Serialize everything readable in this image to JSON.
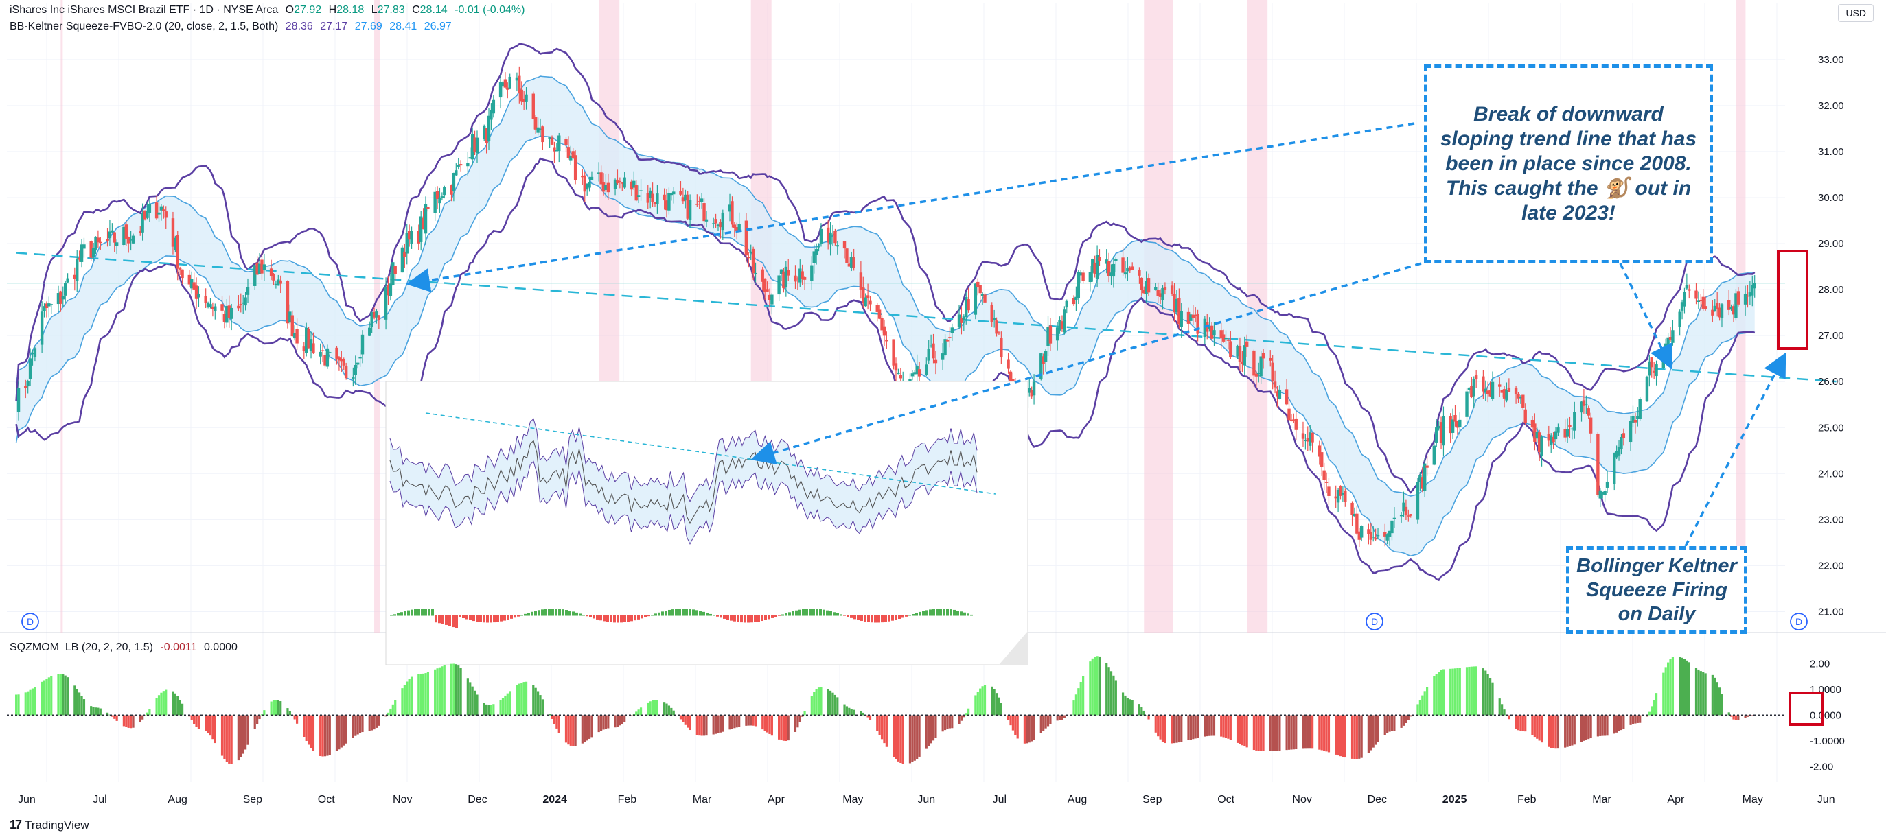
{
  "header": {
    "symbol_line": "iShares Inc iShares MSCI Brazil ETF · 1D · NYSE Arca",
    "ohlc": {
      "open_label": "O",
      "open": "27.92",
      "high_label": "H",
      "high": "28.18",
      "low_label": "L",
      "low": "27.83",
      "close_label": "C",
      "close": "28.14",
      "change": "-0.01 (-0.04%)"
    },
    "indicator_line": "BB-Keltner Squeeze-FVBO-2.0 (20, close, 2, 1.5, Both)",
    "indicator_values": [
      "28.36",
      "27.17",
      "27.69",
      "28.41",
      "26.97"
    ],
    "momentum_line": "SQZMOM_LB (20, 2, 20, 1.5)",
    "momentum_values": [
      "-0.0011",
      "0.0000"
    ]
  },
  "currency_badge": "USD",
  "callouts": {
    "trend": "Break of downward sloping trend line that has been in place since 2008. This caught the 🐒 out in late 2023!",
    "squeeze": "Bollinger Keltner Squeeze Firing on Daily"
  },
  "footer": {
    "brand": "TradingView"
  },
  "colors": {
    "bullish": "#26a69a",
    "bearish": "#ef5350",
    "bb_band": "#5b3fa3",
    "kc_band": "#4aa3df",
    "kc_fill": "#dbeefa",
    "trend_line": "#29b6d6",
    "squeeze_highlight": "#f8c8d8",
    "mom_up_strong": "#4caf50",
    "mom_up_weak": "#6ef06e",
    "mom_down_strong": "#ef5350",
    "mom_down_weak": "#b5514f",
    "arrow": "#1e90e8",
    "highlight_box": "#d0021b"
  },
  "chart_data": [
    {
      "type": "candlestick",
      "title": "iShares Inc iShares MSCI Brazil ETF · 1D · NYSE Arca",
      "x_labels": [
        "Jun",
        "Jul",
        "Aug",
        "Sep",
        "Oct",
        "Nov",
        "Dec",
        "2024",
        "Feb",
        "Mar",
        "Apr",
        "May",
        "Jun",
        "Jul",
        "Aug",
        "Sep",
        "Oct",
        "Nov",
        "Dec",
        "2025",
        "Feb",
        "Mar",
        "Apr",
        "May",
        "Jun"
      ],
      "y_ticks": [
        "21.00",
        "22.00",
        "23.00",
        "24.00",
        "25.00",
        "26.00",
        "27.00",
        "28.00",
        "29.00",
        "30.00",
        "31.00",
        "32.00",
        "33.00"
      ],
      "ylim": [
        20.5,
        33.4
      ],
      "last_price": 28.14,
      "close_path": [
        {
          "x": "2023-06-01",
          "y": 25.6
        },
        {
          "x": "2023-06-15",
          "y": 27.6
        },
        {
          "x": "2023-07-03",
          "y": 28.9
        },
        {
          "x": "2023-07-20",
          "y": 29.2
        },
        {
          "x": "2023-08-01",
          "y": 29.8
        },
        {
          "x": "2023-08-15",
          "y": 28.0
        },
        {
          "x": "2023-09-01",
          "y": 27.4
        },
        {
          "x": "2023-09-15",
          "y": 28.5
        },
        {
          "x": "2023-10-02",
          "y": 26.9
        },
        {
          "x": "2023-10-20",
          "y": 26.2
        },
        {
          "x": "2023-11-01",
          "y": 27.4
        },
        {
          "x": "2023-11-15",
          "y": 29.0
        },
        {
          "x": "2023-12-01",
          "y": 30.2
        },
        {
          "x": "2023-12-15",
          "y": 31.2
        },
        {
          "x": "2023-12-29",
          "y": 32.5
        },
        {
          "x": "2024-01-15",
          "y": 31.2
        },
        {
          "x": "2024-02-01",
          "y": 30.3
        },
        {
          "x": "2024-02-15",
          "y": 30.3
        },
        {
          "x": "2024-03-01",
          "y": 30.0
        },
        {
          "x": "2024-03-15",
          "y": 29.8
        },
        {
          "x": "2024-04-01",
          "y": 29.6
        },
        {
          "x": "2024-04-16",
          "y": 28.0
        },
        {
          "x": "2024-05-01",
          "y": 28.4
        },
        {
          "x": "2024-05-15",
          "y": 29.3
        },
        {
          "x": "2024-06-01",
          "y": 27.5
        },
        {
          "x": "2024-06-15",
          "y": 25.9
        },
        {
          "x": "2024-07-01",
          "y": 26.7
        },
        {
          "x": "2024-07-15",
          "y": 27.9
        },
        {
          "x": "2024-08-05",
          "y": 25.6
        },
        {
          "x": "2024-08-20",
          "y": 27.4
        },
        {
          "x": "2024-09-03",
          "y": 28.6
        },
        {
          "x": "2024-09-20",
          "y": 28.3
        },
        {
          "x": "2024-10-01",
          "y": 28.0
        },
        {
          "x": "2024-10-15",
          "y": 27.3
        },
        {
          "x": "2024-11-01",
          "y": 26.7
        },
        {
          "x": "2024-11-15",
          "y": 26.3
        },
        {
          "x": "2024-12-02",
          "y": 25.0
        },
        {
          "x": "2024-12-16",
          "y": 23.4
        },
        {
          "x": "2024-12-31",
          "y": 22.6
        },
        {
          "x": "2025-01-15",
          "y": 23.3
        },
        {
          "x": "2025-02-01",
          "y": 25.0
        },
        {
          "x": "2025-02-15",
          "y": 25.9
        },
        {
          "x": "2025-03-01",
          "y": 25.6
        },
        {
          "x": "2025-03-15",
          "y": 24.6
        },
        {
          "x": "2025-04-01",
          "y": 25.4
        },
        {
          "x": "2025-04-08",
          "y": 23.6
        },
        {
          "x": "2025-04-20",
          "y": 25.0
        },
        {
          "x": "2025-05-01",
          "y": 26.3
        },
        {
          "x": "2025-05-15",
          "y": 27.9
        },
        {
          "x": "2025-06-01",
          "y": 27.6
        },
        {
          "x": "2025-06-13",
          "y": 28.14
        }
      ],
      "series": [
        {
          "name": "BB-Keltner Squeeze-FVBO-2.0",
          "kind": "bands"
        },
        {
          "name": "Downward trend line",
          "kind": "line",
          "points": [
            {
              "x": "2023-06-01",
              "y": 28.8
            },
            {
              "x": "2025-06-20",
              "y": 26.0
            }
          ]
        }
      ],
      "grid": true
    },
    {
      "type": "bar",
      "title": "SQZMOM_LB (20, 2, 20, 1.5)",
      "y_ticks": [
        "-2.00",
        "-1.0000",
        "0.0000",
        "1.0000",
        "2.00"
      ],
      "ylim": [
        -2.6,
        2.6
      ],
      "momentum_path": [
        {
          "x": "2023-06-01",
          "y": 0.8
        },
        {
          "x": "2023-06-20",
          "y": 1.6
        },
        {
          "x": "2023-07-05",
          "y": 0.3
        },
        {
          "x": "2023-07-20",
          "y": -0.5
        },
        {
          "x": "2023-08-05",
          "y": 1.0
        },
        {
          "x": "2023-08-20",
          "y": -0.6
        },
        {
          "x": "2023-09-01",
          "y": -1.9
        },
        {
          "x": "2023-09-20",
          "y": 0.6
        },
        {
          "x": "2023-10-10",
          "y": -1.6
        },
        {
          "x": "2023-10-30",
          "y": -0.6
        },
        {
          "x": "2023-11-20",
          "y": 1.6
        },
        {
          "x": "2023-12-05",
          "y": 2.0
        },
        {
          "x": "2023-12-20",
          "y": 0.4
        },
        {
          "x": "2024-01-05",
          "y": 1.3
        },
        {
          "x": "2024-01-25",
          "y": -1.2
        },
        {
          "x": "2024-02-10",
          "y": -0.5
        },
        {
          "x": "2024-03-01",
          "y": 0.6
        },
        {
          "x": "2024-03-20",
          "y": -0.8
        },
        {
          "x": "2024-04-10",
          "y": -0.4
        },
        {
          "x": "2024-04-25",
          "y": -1.0
        },
        {
          "x": "2024-05-10",
          "y": 1.1
        },
        {
          "x": "2024-05-25",
          "y": 0.2
        },
        {
          "x": "2024-06-15",
          "y": -1.9
        },
        {
          "x": "2024-07-05",
          "y": -0.5
        },
        {
          "x": "2024-07-20",
          "y": 1.2
        },
        {
          "x": "2024-08-05",
          "y": -1.1
        },
        {
          "x": "2024-08-20",
          "y": -0.2
        },
        {
          "x": "2024-09-05",
          "y": 2.3
        },
        {
          "x": "2024-09-20",
          "y": 0.6
        },
        {
          "x": "2024-10-05",
          "y": -1.1
        },
        {
          "x": "2024-10-25",
          "y": -0.8
        },
        {
          "x": "2024-11-15",
          "y": -1.4
        },
        {
          "x": "2024-12-05",
          "y": -1.3
        },
        {
          "x": "2024-12-25",
          "y": -1.7
        },
        {
          "x": "2025-01-10",
          "y": -0.6
        },
        {
          "x": "2025-02-01",
          "y": 1.8
        },
        {
          "x": "2025-02-15",
          "y": 1.9
        },
        {
          "x": "2025-03-05",
          "y": -0.6
        },
        {
          "x": "2025-03-20",
          "y": -1.3
        },
        {
          "x": "2025-04-10",
          "y": -0.8
        },
        {
          "x": "2025-04-25",
          "y": -0.3
        },
        {
          "x": "2025-05-10",
          "y": 2.3
        },
        {
          "x": "2025-05-25",
          "y": 1.6
        },
        {
          "x": "2025-06-05",
          "y": -0.2
        },
        {
          "x": "2025-06-13",
          "y": -0.0011
        }
      ]
    }
  ]
}
